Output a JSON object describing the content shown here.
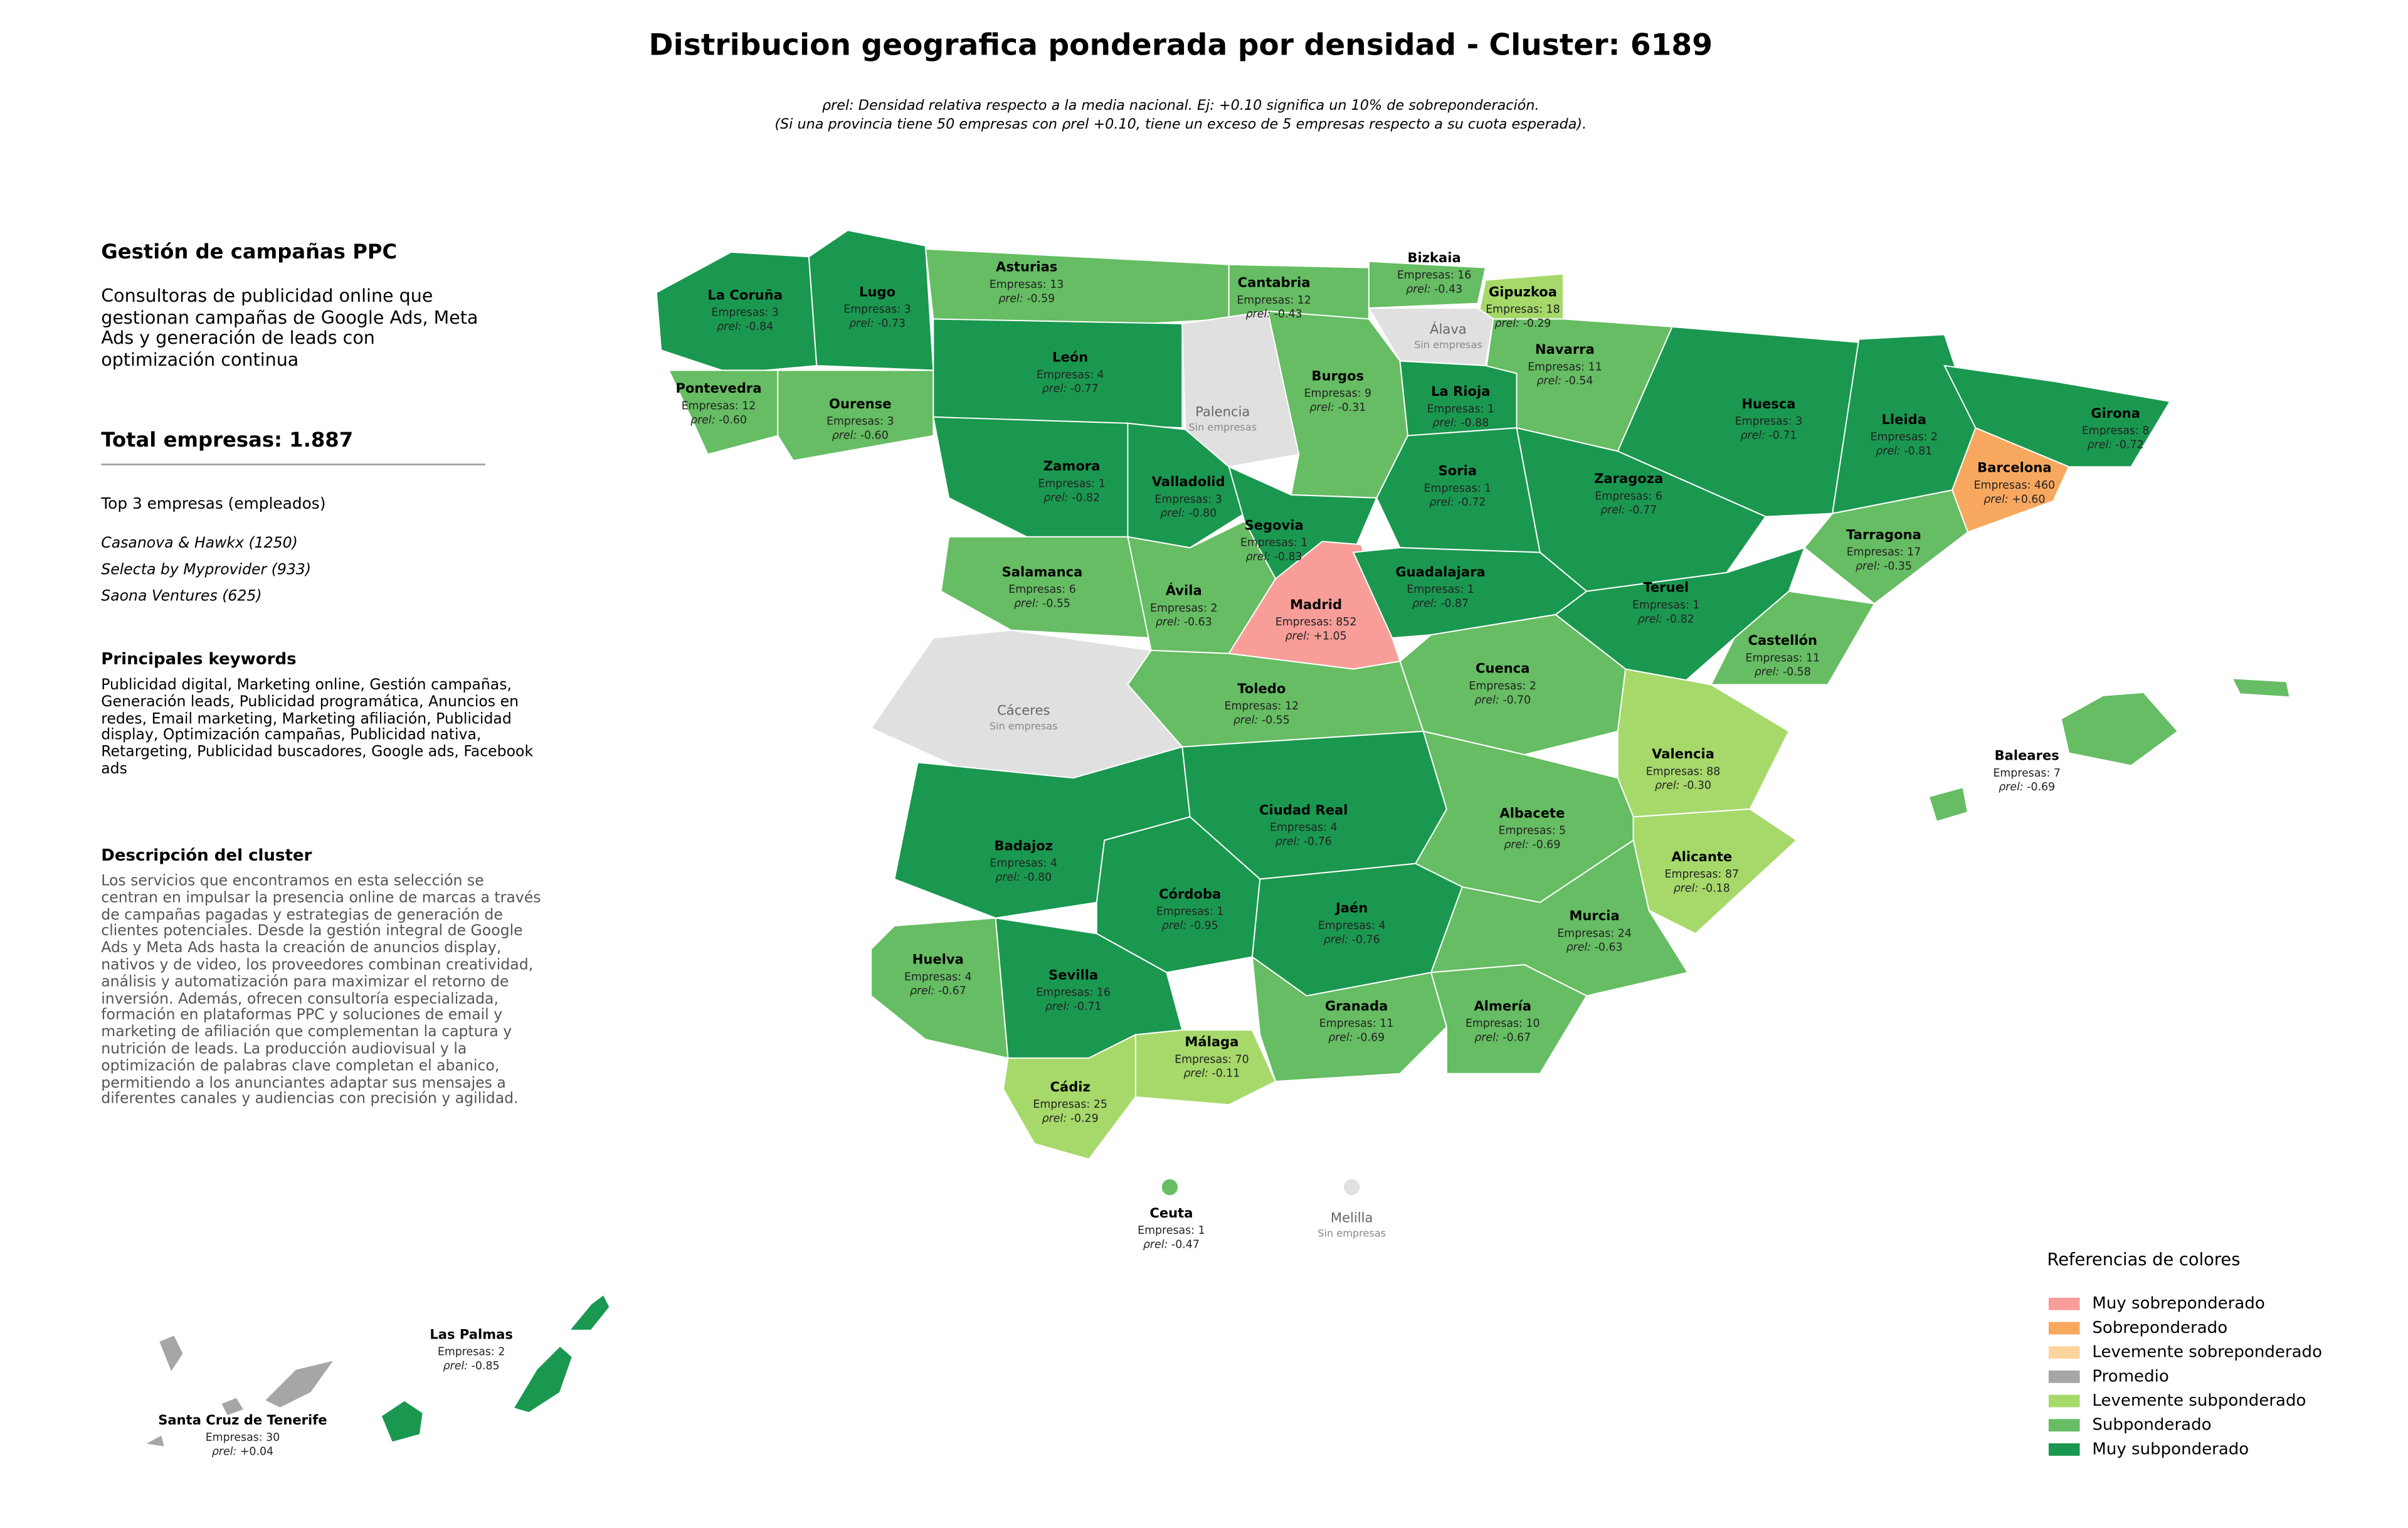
{
  "title": "Distribucion geografica ponderada por densidad - Cluster: 6189",
  "subtitle_lines": [
    "ρrel: Densidad relativa respecto a la media nacional. Ej: +0.10 significa un 10% de sobreponderación.",
    "(Si una provincia tiene 50 empresas con ρrel +0.10, tiene un exceso de 5 empresas respecto a su cuota esperada)."
  ],
  "panel": {
    "heading": "Gestión de campañas PPC",
    "description": "Consultoras de publicidad online que gestionan campañas de Google Ads, Meta Ads y generación de leads con optimización continua",
    "total": "Total empresas: 1.887",
    "top_title": "Top 3 empresas (empleados)",
    "top": [
      "Casanova & Hawkx (1250)",
      "Selecta by Myprovider (933)",
      "Saona Ventures (625)"
    ],
    "keywords_title": "Principales keywords",
    "keywords": "Publicidad digital, Marketing online, Gestión campañas, Generación leads, Publicidad programática, Anuncios en redes, Email marketing, Marketing afiliación, Publicidad display, Optimización campañas, Publicidad nativa, Retargeting, Publicidad buscadores, Google ads, Facebook ads",
    "cluster_title": "Descripción del cluster",
    "cluster_text": "Los servicios que encontramos en esta selección se centran en impulsar la presencia online de marcas a través de campañas pagadas y estrategias de generación de clientes potenciales. Desde la gestión integral de Google Ads y Meta Ads hasta la creación de anuncios display, nativos y de video, los proveedores combinan creatividad, análisis y automatización para maximizar el retorno de inversión. Además, ofrecen consultoría especializada, formación en plataformas PPC y soluciones de email y marketing de afiliación que complementan la captura y nutrición de leads. La producción audiovisual y la optimización de palabras clave completan el abanico, permitiendo a los anunciantes adaptar sus mensajes a diferentes canales y audiencias con precisión y agilidad."
  },
  "map": {
    "empresas_label": "Empresas:",
    "rho_label": "ρrel:",
    "empty_label": "Sin empresas",
    "empty_color": "#e0e0e0",
    "provinces": [
      {
        "name": "La Coruña",
        "empresas": 3,
        "rho": -0.84,
        "rho_label": "-0.84",
        "color": "#1a9850"
      },
      {
        "name": "Lugo",
        "empresas": 3,
        "rho": -0.73,
        "rho_label": "-0.73",
        "color": "#1a9850"
      },
      {
        "name": "Asturias",
        "empresas": 13,
        "rho": -0.59,
        "rho_label": "-0.59",
        "color": "#66bd63"
      },
      {
        "name": "Cantabria",
        "empresas": 12,
        "rho": -0.43,
        "rho_label": "-0.43",
        "color": "#66bd63"
      },
      {
        "name": "Bizkaia",
        "empresas": 16,
        "rho": -0.43,
        "rho_label": "-0.43",
        "color": "#66bd63"
      },
      {
        "name": "Gipuzkoa",
        "empresas": 18,
        "rho": -0.29,
        "rho_label": "-0.29",
        "color": "#a6d96a"
      },
      {
        "name": "Álava"
      },
      {
        "name": "Navarra",
        "empresas": 11,
        "rho": -0.54,
        "rho_label": "-0.54",
        "color": "#66bd63"
      },
      {
        "name": "Pontevedra",
        "empresas": 12,
        "rho": -0.6,
        "rho_label": "-0.60",
        "color": "#66bd63"
      },
      {
        "name": "Ourense",
        "empresas": 3,
        "rho": -0.6,
        "rho_label": "-0.60",
        "color": "#66bd63"
      },
      {
        "name": "León",
        "empresas": 4,
        "rho": -0.77,
        "rho_label": "-0.77",
        "color": "#1a9850"
      },
      {
        "name": "Palencia"
      },
      {
        "name": "Burgos",
        "empresas": 9,
        "rho": -0.31,
        "rho_label": "-0.31",
        "color": "#66bd63"
      },
      {
        "name": "La Rioja",
        "empresas": 1,
        "rho": -0.88,
        "rho_label": "-0.88",
        "color": "#1a9850"
      },
      {
        "name": "Huesca",
        "empresas": 3,
        "rho": -0.71,
        "rho_label": "-0.71",
        "color": "#1a9850"
      },
      {
        "name": "Lleida",
        "empresas": 2,
        "rho": -0.81,
        "rho_label": "-0.81",
        "color": "#1a9850"
      },
      {
        "name": "Girona",
        "empresas": 8,
        "rho": -0.72,
        "rho_label": "-0.72",
        "color": "#1a9850"
      },
      {
        "name": "Barcelona",
        "empresas": 460,
        "rho": 0.6,
        "rho_label": "+0.60",
        "color": "#f8a85e"
      },
      {
        "name": "Zamora",
        "empresas": 1,
        "rho": -0.82,
        "rho_label": "-0.82",
        "color": "#1a9850"
      },
      {
        "name": "Valladolid",
        "empresas": 3,
        "rho": -0.8,
        "rho_label": "-0.80",
        "color": "#1a9850"
      },
      {
        "name": "Soria",
        "empresas": 1,
        "rho": -0.72,
        "rho_label": "-0.72",
        "color": "#1a9850"
      },
      {
        "name": "Zaragoza",
        "empresas": 6,
        "rho": -0.77,
        "rho_label": "-0.77",
        "color": "#1a9850"
      },
      {
        "name": "Segovia",
        "empresas": 1,
        "rho": -0.83,
        "rho_label": "-0.83",
        "color": "#1a9850"
      },
      {
        "name": "Tarragona",
        "empresas": 17,
        "rho": -0.35,
        "rho_label": "-0.35",
        "color": "#66bd63"
      },
      {
        "name": "Salamanca",
        "empresas": 6,
        "rho": -0.55,
        "rho_label": "-0.55",
        "color": "#66bd63"
      },
      {
        "name": "Ávila",
        "empresas": 2,
        "rho": -0.63,
        "rho_label": "-0.63",
        "color": "#66bd63"
      },
      {
        "name": "Madrid",
        "empresas": 852,
        "rho": 1.05,
        "rho_label": "+1.05",
        "color": "#f89d98"
      },
      {
        "name": "Guadalajara",
        "empresas": 1,
        "rho": -0.87,
        "rho_label": "-0.87",
        "color": "#1a9850"
      },
      {
        "name": "Teruel",
        "empresas": 1,
        "rho": -0.82,
        "rho_label": "-0.82",
        "color": "#1a9850"
      },
      {
        "name": "Castellón",
        "empresas": 11,
        "rho": -0.58,
        "rho_label": "-0.58",
        "color": "#66bd63"
      },
      {
        "name": "Cuenca",
        "empresas": 2,
        "rho": -0.7,
        "rho_label": "-0.70",
        "color": "#66bd63"
      },
      {
        "name": "Toledo",
        "empresas": 12,
        "rho": -0.55,
        "rho_label": "-0.55",
        "color": "#66bd63"
      },
      {
        "name": "Cáceres"
      },
      {
        "name": "Valencia",
        "empresas": 88,
        "rho": -0.3,
        "rho_label": "-0.30",
        "color": "#a6d96a"
      },
      {
        "name": "Baleares",
        "empresas": 7,
        "rho": -0.69,
        "rho_label": "-0.69",
        "color": "#66bd63"
      },
      {
        "name": "Ciudad Real",
        "empresas": 4,
        "rho": -0.76,
        "rho_label": "-0.76",
        "color": "#1a9850"
      },
      {
        "name": "Albacete",
        "empresas": 5,
        "rho": -0.69,
        "rho_label": "-0.69",
        "color": "#66bd63"
      },
      {
        "name": "Badajoz",
        "empresas": 4,
        "rho": -0.8,
        "rho_label": "-0.80",
        "color": "#1a9850"
      },
      {
        "name": "Alicante",
        "empresas": 87,
        "rho": -0.18,
        "rho_label": "-0.18",
        "color": "#a6d96a"
      },
      {
        "name": "Córdoba",
        "empresas": 1,
        "rho": -0.95,
        "rho_label": "-0.95",
        "color": "#1a9850"
      },
      {
        "name": "Jaén",
        "empresas": 4,
        "rho": -0.76,
        "rho_label": "-0.76",
        "color": "#1a9850"
      },
      {
        "name": "Murcia",
        "empresas": 24,
        "rho": -0.63,
        "rho_label": "-0.63",
        "color": "#66bd63"
      },
      {
        "name": "Huelva",
        "empresas": 4,
        "rho": -0.67,
        "rho_label": "-0.67",
        "color": "#66bd63"
      },
      {
        "name": "Sevilla",
        "empresas": 16,
        "rho": -0.71,
        "rho_label": "-0.71",
        "color": "#1a9850"
      },
      {
        "name": "Granada",
        "empresas": 11,
        "rho": -0.69,
        "rho_label": "-0.69",
        "color": "#66bd63"
      },
      {
        "name": "Almería",
        "empresas": 10,
        "rho": -0.67,
        "rho_label": "-0.67",
        "color": "#66bd63"
      },
      {
        "name": "Málaga",
        "empresas": 70,
        "rho": -0.11,
        "rho_label": "-0.11",
        "color": "#a6d96a"
      },
      {
        "name": "Cádiz",
        "empresas": 25,
        "rho": -0.29,
        "rho_label": "-0.29",
        "color": "#a6d96a"
      },
      {
        "name": "Ceuta",
        "empresas": 1,
        "rho": -0.47,
        "rho_label": "-0.47",
        "color": "#66bd63"
      },
      {
        "name": "Melilla"
      },
      {
        "name": "Las Palmas",
        "empresas": 2,
        "rho": -0.85,
        "rho_label": "-0.85",
        "color": "#1a9850"
      },
      {
        "name": "Santa Cruz de Tenerife",
        "empresas": 30,
        "rho": 0.04,
        "rho_label": "+0.04",
        "color": "#a6a6a6"
      }
    ]
  },
  "legend": {
    "title": "Referencias de colores",
    "items": [
      {
        "name": "Muy sobreponderado",
        "color": "#f89d98"
      },
      {
        "name": "Sobreponderado",
        "color": "#f8a85e"
      },
      {
        "name": "Levemente sobreponderado",
        "color": "#fdd49e"
      },
      {
        "name": "Promedio",
        "color": "#a6a6a6"
      },
      {
        "name": "Levemente subponderado",
        "color": "#a6d96a"
      },
      {
        "name": "Subponderado",
        "color": "#66bd63"
      },
      {
        "name": "Muy subponderado",
        "color": "#1a9850"
      }
    ]
  }
}
